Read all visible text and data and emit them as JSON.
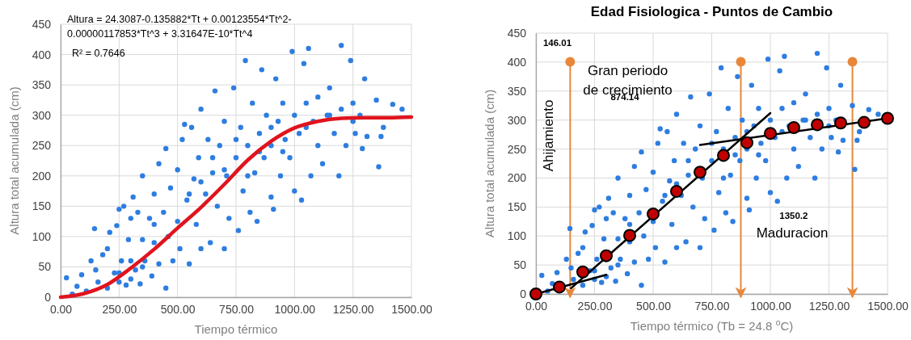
{
  "chart_data": [
    {
      "type": "scatter",
      "xlabel": "Tiempo térmico",
      "ylabel": "Altura total acumulada (cm)",
      "xlim": [
        0,
        1500
      ],
      "xticks": [
        {
          "value": 0,
          "label": "0.00"
        },
        {
          "value": 250,
          "label": "250.00"
        },
        {
          "value": 500,
          "label": "500.00"
        },
        {
          "value": 750,
          "label": "750.00"
        },
        {
          "value": 1000,
          "label": "1000.00"
        },
        {
          "value": 1250,
          "label": "1250.00"
        },
        {
          "value": 1500,
          "label": "1500.00"
        }
      ],
      "ylim": [
        0,
        450
      ],
      "yticks": [
        0,
        50,
        100,
        150,
        200,
        250,
        300,
        350,
        400,
        450
      ],
      "grid": true,
      "annotations": [
        "Altura = 24.3087-0.135882*Tt + 0.00123554*Tt^2-\n0.00000117853*Tt^3 + 3.31647E-10*Tt^4",
        "R² = 0.7646"
      ],
      "series": [
        {
          "marker": "circle",
          "color": "#2e7de0",
          "x": [
            25,
            50,
            70,
            90,
            110,
            130,
            145,
            150,
            160,
            180,
            200,
            200,
            210,
            230,
            240,
            250,
            250,
            260,
            270,
            280,
            290,
            300,
            300,
            310,
            320,
            330,
            340,
            350,
            350,
            360,
            380,
            390,
            400,
            400,
            420,
            420,
            440,
            450,
            450,
            460,
            470,
            480,
            500,
            500,
            510,
            520,
            530,
            540,
            550,
            560,
            570,
            580,
            590,
            600,
            600,
            620,
            630,
            640,
            650,
            660,
            670,
            680,
            700,
            700,
            710,
            720,
            740,
            750,
            760,
            770,
            780,
            790,
            800,
            810,
            820,
            830,
            840,
            850,
            860,
            870,
            880,
            900,
            900,
            910,
            920,
            930,
            940,
            950,
            960,
            980,
            990,
            1000,
            1000,
            1020,
            1030,
            1040,
            1050,
            1060,
            1070,
            1080,
            1100,
            1100,
            1120,
            1140,
            1150,
            1170,
            1190,
            1200,
            1200,
            1220,
            1240,
            1250,
            1260,
            1280,
            1290,
            1300,
            1310,
            1350,
            1360,
            1370,
            1380,
            1420,
            1460,
            550,
            600,
            650,
            700,
            750,
            800,
            850,
            900,
            950,
            400,
            350,
            300,
            250,
            1050,
            1150,
            1250
          ],
          "values": [
            32,
            5,
            18,
            37,
            10,
            60,
            113,
            45,
            25,
            70,
            15,
            80,
            107,
            40,
            118,
            25,
            145,
            60,
            150,
            20,
            95,
            30,
            130,
            165,
            45,
            140,
            22,
            95,
            200,
            60,
            130,
            35,
            170,
            90,
            55,
            220,
            140,
            15,
            245,
            100,
            180,
            60,
            125,
            210,
            80,
            260,
            285,
            160,
            55,
            280,
            195,
            120,
            230,
            310,
            80,
            170,
            260,
            90,
            205,
            340,
            150,
            250,
            80,
            290,
            200,
            130,
            345,
            230,
            110,
            280,
            175,
            390,
            250,
            140,
            320,
            205,
            125,
            270,
            375,
            230,
            300,
            165,
            250,
            145,
            360,
            290,
            200,
            320,
            260,
            230,
            405,
            300,
            175,
            270,
            160,
            385,
            320,
            410,
            200,
            290,
            250,
            330,
            220,
            300,
            345,
            270,
            200,
            415,
            310,
            250,
            390,
            320,
            270,
            300,
            245,
            360,
            265,
            325,
            215,
            265,
            280,
            318,
            310,
            170,
            190,
            230,
            210,
            260,
            200,
            240,
            280,
            240,
            120,
            50,
            60,
            40,
            280,
            300,
            290
          ]
        },
        {
          "type": "line",
          "marker": "none",
          "color": "#e0141e",
          "x": [
            0,
            100,
            200,
            300,
            400,
            500,
            600,
            700,
            800,
            900,
            1000,
            1100,
            1200,
            1300,
            1400,
            1500
          ],
          "values": [
            0,
            6,
            21,
            48,
            79,
            114,
            148,
            186,
            226,
            257,
            279,
            290,
            295,
            296,
            296,
            297
          ]
        }
      ]
    },
    {
      "type": "scatter",
      "title": "Edad Fisiologica - Puntos de Cambio",
      "xlabel": "Tiempo térmico (Tb = 24.8 $^{o}$C)",
      "ylabel": "Altura total acumulada (cm)",
      "xlim": [
        0,
        1500
      ],
      "xticks": [
        {
          "value": 0,
          "label": "0.00"
        },
        {
          "value": 250,
          "label": "250.00"
        },
        {
          "value": 500,
          "label": "500.00"
        },
        {
          "value": 750,
          "label": "750.00"
        },
        {
          "value": 1000,
          "label": "1000.00"
        },
        {
          "value": 1250,
          "label": "1250.00"
        },
        {
          "value": 1500,
          "label": "1500.00"
        }
      ],
      "ylim": [
        0,
        450
      ],
      "yticks": [
        0,
        50,
        100,
        150,
        200,
        250,
        300,
        350,
        400,
        450
      ],
      "grid": true,
      "annotations": [
        "146.01",
        "Ahijamiento",
        "Gran periodo\nde crecimiento",
        "874.14",
        "1350.2",
        "Maduracion"
      ],
      "ref_lines": [
        {
          "axis": "x",
          "value": 146.01,
          "color": "#e8873a"
        },
        {
          "axis": "x",
          "value": 874.14,
          "color": "#e8873a"
        },
        {
          "axis": "x",
          "value": 1350.2,
          "color": "#e8873a"
        }
      ],
      "series": [
        {
          "marker": "circle",
          "color": "#2e7de0",
          "x": [
            25,
            50,
            70,
            90,
            130,
            145,
            150,
            160,
            180,
            200,
            200,
            210,
            230,
            240,
            250,
            250,
            260,
            270,
            280,
            290,
            300,
            300,
            310,
            320,
            330,
            340,
            350,
            350,
            360,
            380,
            390,
            400,
            400,
            420,
            420,
            440,
            450,
            450,
            460,
            470,
            480,
            500,
            500,
            510,
            520,
            530,
            540,
            550,
            560,
            570,
            580,
            590,
            600,
            600,
            620,
            630,
            640,
            650,
            660,
            670,
            680,
            700,
            700,
            710,
            720,
            740,
            750,
            760,
            770,
            780,
            790,
            800,
            810,
            820,
            830,
            840,
            850,
            860,
            870,
            880,
            900,
            900,
            910,
            920,
            930,
            940,
            950,
            960,
            980,
            990,
            1000,
            1000,
            1020,
            1030,
            1040,
            1050,
            1060,
            1070,
            1080,
            1100,
            1100,
            1120,
            1140,
            1150,
            1170,
            1190,
            1200,
            1200,
            1220,
            1240,
            1250,
            1260,
            1280,
            1290,
            1300,
            1310,
            1350,
            1360,
            1370,
            1380,
            1420,
            1460,
            550,
            600,
            650,
            750,
            800,
            850,
            900,
            950,
            400,
            350,
            250,
            1050,
            1150,
            1250
          ],
          "values": [
            32,
            5,
            18,
            37,
            60,
            113,
            45,
            25,
            70,
            15,
            80,
            107,
            40,
            118,
            25,
            145,
            60,
            150,
            20,
            95,
            30,
            130,
            165,
            45,
            140,
            22,
            95,
            200,
            60,
            130,
            35,
            170,
            90,
            55,
            220,
            140,
            15,
            245,
            100,
            180,
            60,
            125,
            210,
            80,
            260,
            285,
            160,
            55,
            280,
            195,
            120,
            230,
            310,
            80,
            170,
            260,
            90,
            205,
            340,
            150,
            250,
            80,
            290,
            200,
            130,
            345,
            230,
            110,
            280,
            175,
            390,
            250,
            140,
            320,
            205,
            125,
            270,
            375,
            230,
            300,
            165,
            250,
            145,
            360,
            290,
            200,
            320,
            260,
            230,
            405,
            300,
            175,
            270,
            160,
            385,
            320,
            410,
            200,
            290,
            250,
            330,
            220,
            300,
            345,
            270,
            200,
            415,
            310,
            250,
            390,
            320,
            270,
            300,
            245,
            360,
            265,
            325,
            215,
            265,
            280,
            318,
            310,
            170,
            190,
            230,
            260,
            200,
            240,
            280,
            240,
            120,
            50,
            40,
            280,
            300,
            290
          ]
        },
        {
          "type": "line",
          "marker": "none",
          "color": "#000000",
          "x": [
            0,
            300
          ],
          "values": [
            0,
            33
          ]
        },
        {
          "type": "line",
          "marker": "none",
          "color": "#000000",
          "x": [
            150,
            1000
          ],
          "values": [
            10,
            312
          ]
        },
        {
          "type": "line",
          "marker": "none",
          "color": "#000000",
          "x": [
            700,
            1500
          ],
          "values": [
            257,
            303
          ]
        },
        {
          "marker": "circle",
          "color": "#c00000",
          "x": [
            0,
            100,
            200,
            300,
            400,
            500,
            600,
            700,
            800,
            900,
            1000,
            1100,
            1200,
            1300,
            1400,
            1500
          ],
          "values": [
            0,
            12,
            38,
            66,
            101,
            138,
            177,
            210,
            239,
            261,
            277,
            287,
            292,
            295,
            296,
            303
          ]
        }
      ]
    }
  ]
}
